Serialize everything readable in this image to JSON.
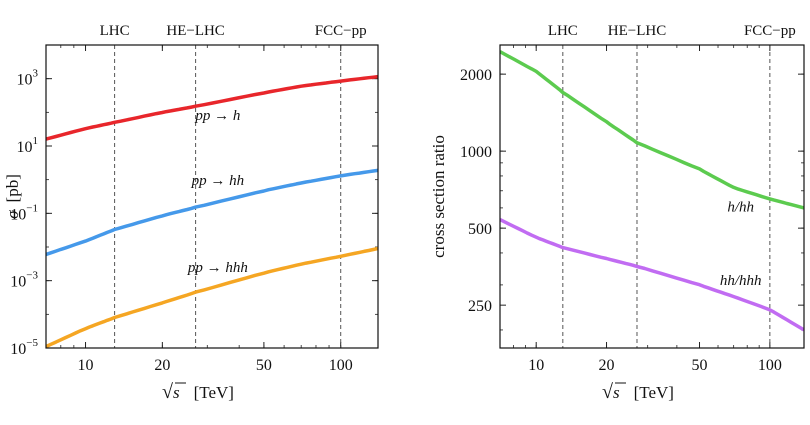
{
  "chart_data": [
    {
      "type": "line",
      "panel": "left",
      "x_scale": "log",
      "y_scale": "log",
      "xlim": [
        7,
        140
      ],
      "ylim": [
        1e-05,
        10000
      ],
      "xlabel_sqrt": "√s",
      "xlabel_s": "s",
      "xlabel_unit": "[TeV]",
      "ylabel_sym": "σ",
      "ylabel_unit": "[pb]",
      "x_ticks": [
        {
          "value": 10,
          "label": "10"
        },
        {
          "value": 20,
          "label": "20"
        },
        {
          "value": 50,
          "label": "50"
        },
        {
          "value": 100,
          "label": "100"
        }
      ],
      "y_ticks": [
        {
          "value": 1e-05,
          "base": "10",
          "exp": "−5"
        },
        {
          "value": 0.001,
          "base": "10",
          "exp": "−3"
        },
        {
          "value": 0.1,
          "base": "10",
          "exp": "−1"
        },
        {
          "value": 10,
          "base": "10",
          "exp": "1"
        },
        {
          "value": 1000,
          "base": "10",
          "exp": "3"
        }
      ],
      "colliders": [
        {
          "energy": 13,
          "label": "LHC"
        },
        {
          "energy": 27,
          "label": "HE−LHC"
        },
        {
          "energy": 100,
          "label": "FCC−pp"
        }
      ],
      "x": [
        7,
        10,
        13,
        20,
        27,
        50,
        70,
        100,
        140
      ],
      "series": [
        {
          "name": "pp → h",
          "color": "#e8262b",
          "label_at": [
            33,
            60
          ],
          "values": [
            16,
            33,
            50,
            100,
            150,
            380,
            600,
            850,
            1150
          ]
        },
        {
          "name": "pp → hh",
          "color": "#4599ea",
          "label_at": [
            33,
            0.7
          ],
          "values": [
            0.006,
            0.015,
            0.033,
            0.085,
            0.15,
            0.47,
            0.8,
            1.3,
            1.9
          ]
        },
        {
          "name": "pp → hhh",
          "color": "#f5a623",
          "label_at": [
            33,
            0.0018
          ],
          "values": [
            1.1e-05,
            3.8e-05,
            8e-05,
            0.00022,
            0.00045,
            0.0017,
            0.0031,
            0.0053,
            0.009
          ]
        }
      ]
    },
    {
      "type": "line",
      "panel": "right",
      "x_scale": "log",
      "y_scale": "log",
      "xlim": [
        7,
        140
      ],
      "ylim": [
        170,
        2600
      ],
      "xlabel_sqrt": "√s",
      "xlabel_s": "s",
      "xlabel_unit": "[TeV]",
      "ylabel": "cross section ratio",
      "x_ticks": [
        {
          "value": 10,
          "label": "10"
        },
        {
          "value": 20,
          "label": "20"
        },
        {
          "value": 50,
          "label": "50"
        },
        {
          "value": 100,
          "label": "100"
        }
      ],
      "y_ticks": [
        {
          "value": 250,
          "label": "250"
        },
        {
          "value": 500,
          "label": "500"
        },
        {
          "value": 1000,
          "label": "1000"
        },
        {
          "value": 2000,
          "label": "2000"
        }
      ],
      "colliders": [
        {
          "energy": 13,
          "label": "LHC"
        },
        {
          "energy": 27,
          "label": "HE−LHC"
        },
        {
          "energy": 100,
          "label": "FCC−pp"
        }
      ],
      "x": [
        7,
        10,
        13,
        20,
        27,
        50,
        70,
        100,
        140
      ],
      "series": [
        {
          "name": "h/hh",
          "color": "#5ccb4f",
          "label_at": [
            75,
            580
          ],
          "values": [
            2450,
            2050,
            1700,
            1300,
            1080,
            850,
            720,
            650,
            600
          ]
        },
        {
          "name": "hh/hhh",
          "color": "#c16cf2",
          "label_at": [
            75,
            300
          ],
          "values": [
            540,
            460,
            420,
            380,
            355,
            300,
            270,
            240,
            200
          ]
        }
      ]
    }
  ]
}
